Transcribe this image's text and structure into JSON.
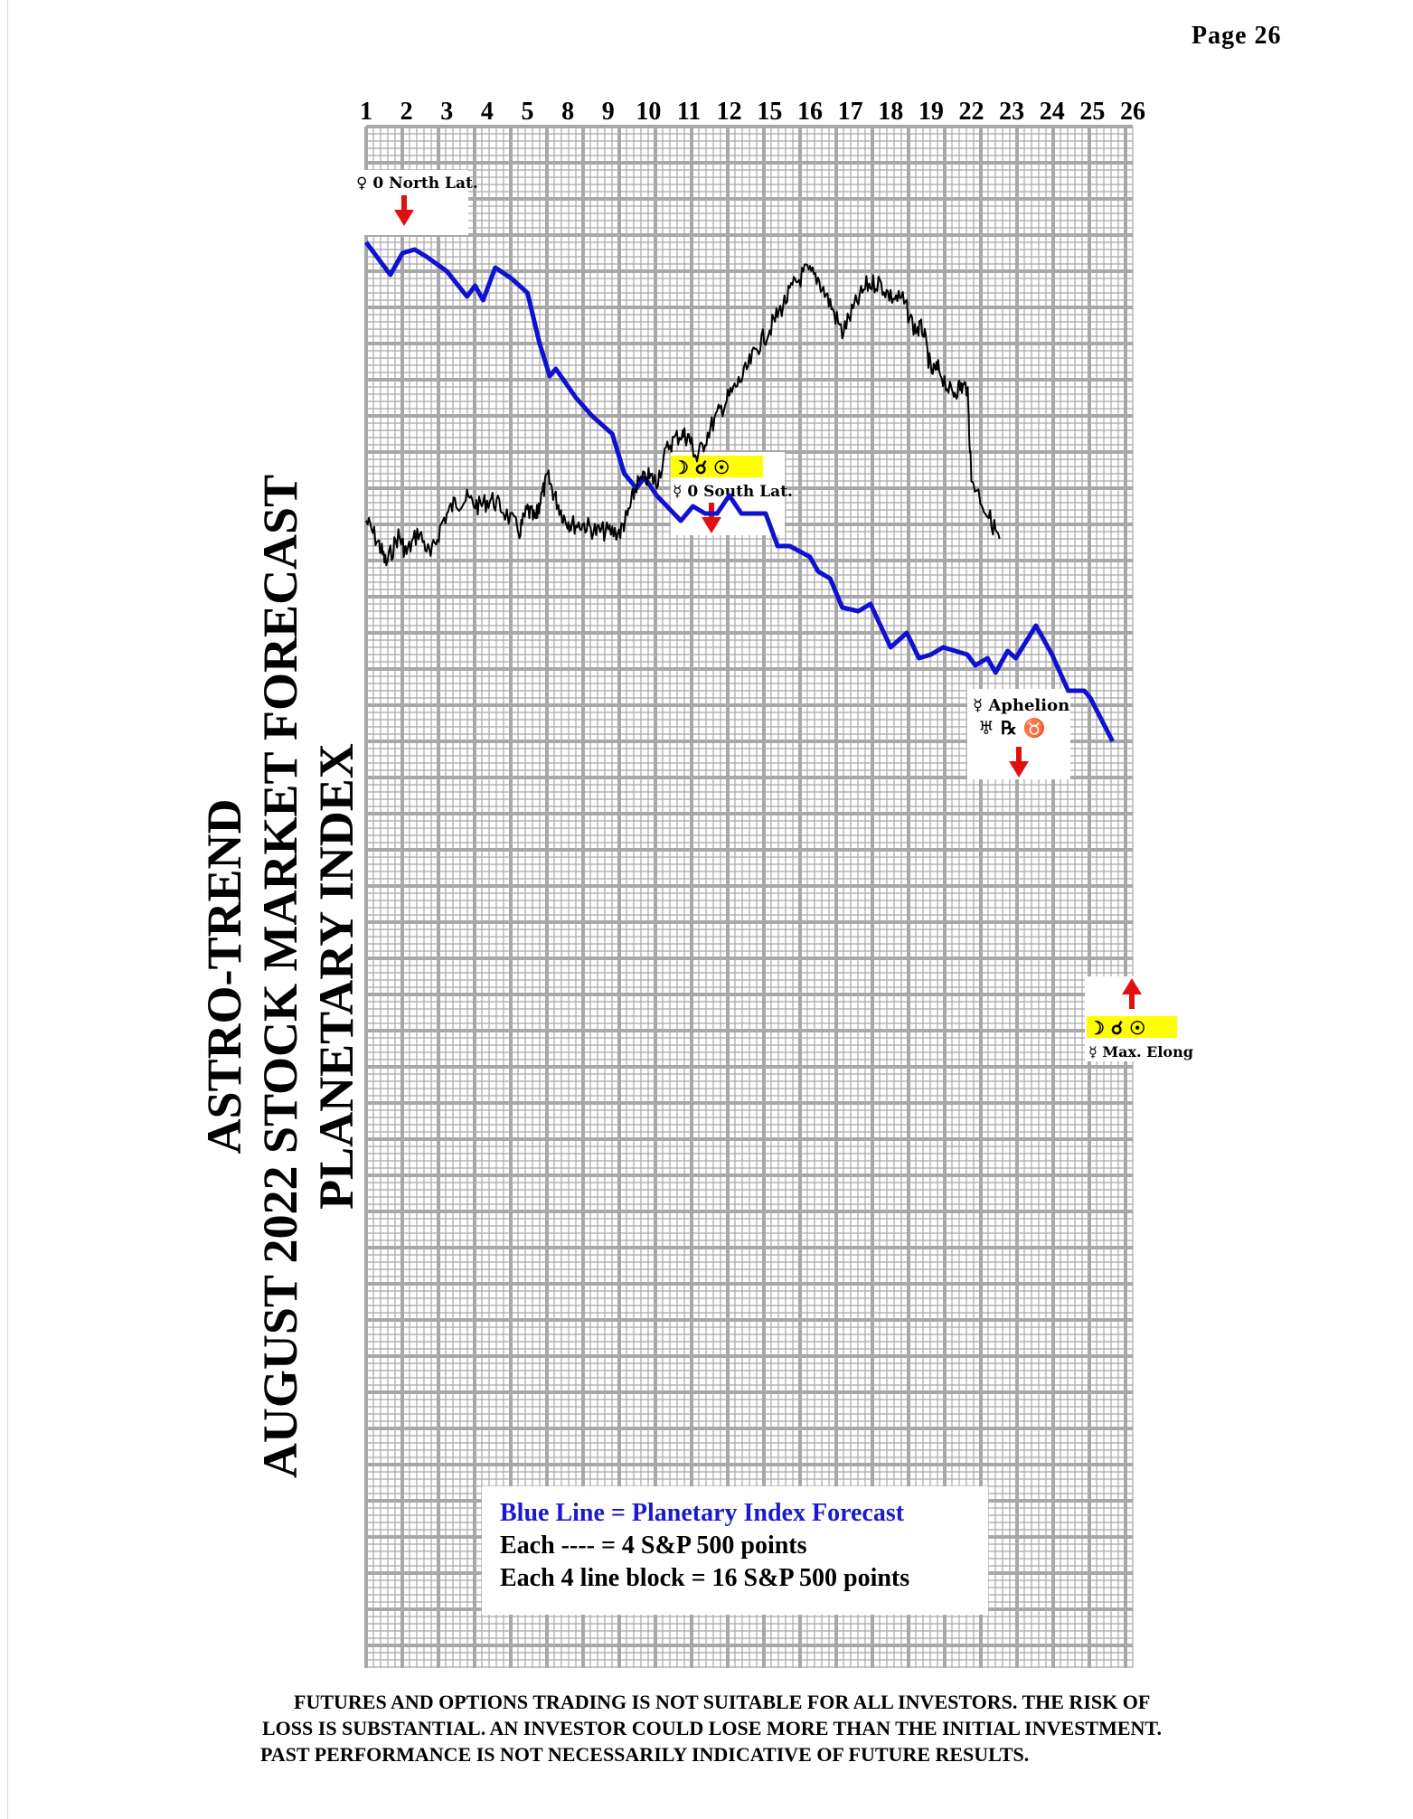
{
  "page": {
    "label": "Page  26"
  },
  "title_lines": [
    "ASTRO-TREND",
    "AUGUST 2022  STOCK MARKET FORECAST",
    "PLANETARY INDEX"
  ],
  "legend": {
    "line1": "Blue Line = Planetary Index Forecast",
    "line2": "Each ---- =   4 S&P 500 points",
    "line3": "Each 4 line block =  16  S&P 500 points"
  },
  "disclaimer": [
    "FUTURES AND OPTIONS TRADING IS NOT SUITABLE FOR ALL INVESTORS.  THE RISK OF",
    "LOSS IS SUBSTANTIAL.  AN INVESTOR COULD LOSE MORE THAN THE INITIAL INVESTMENT.",
    "PAST PERFORMANCE IS NOT NECESSARILY INDICATIVE OF FUTURE RESULTS."
  ],
  "colors": {
    "forecast": "#1010d0",
    "price": "#000000",
    "arrow": "#e01010",
    "highlight": "#ffff00",
    "grid": "#a8a8a8"
  },
  "annotations": [
    {
      "id": "north-lat",
      "symbols": "♀",
      "text": "0 North Lat.",
      "highlight": false,
      "arrow": "down"
    },
    {
      "id": "south-lat",
      "symbols": "☽ ☌ ☉",
      "text": "☿ 0 South Lat.",
      "highlight": true,
      "arrow": "down"
    },
    {
      "id": "aphelion",
      "symbols": "♅ ℞ ♉",
      "text": "☿ Aphelion",
      "highlight": false,
      "arrow": "down"
    },
    {
      "id": "max-elong",
      "symbols": "☽ ☌ ☉",
      "text": "☿ Max. Elong",
      "highlight": true,
      "arrow": "up"
    }
  ],
  "chart_data": {
    "type": "line",
    "title": "AUGUST 2022  STOCK MARKET FORECAST",
    "xlabel": "",
    "ylabel": "",
    "x_tick_labels": [
      "1",
      "2",
      "3",
      "4",
      "5",
      "8",
      "9",
      "10",
      "11",
      "12",
      "15",
      "16",
      "17",
      "18",
      "19",
      "22",
      "23",
      "24",
      "25",
      "26"
    ],
    "series": [
      {
        "name": "Planetary Index Forecast",
        "points": [
          [
            0.0,
            0
          ],
          [
            0.6,
            -9
          ],
          [
            0.9,
            -3
          ],
          [
            1.2,
            -2
          ],
          [
            1.5,
            -4
          ],
          [
            2.0,
            -8
          ],
          [
            2.5,
            -15
          ],
          [
            2.7,
            -12
          ],
          [
            2.9,
            -16
          ],
          [
            3.2,
            -7
          ],
          [
            3.6,
            -10
          ],
          [
            4.0,
            -14
          ],
          [
            4.3,
            -28
          ],
          [
            4.55,
            -37
          ],
          [
            4.7,
            -35
          ],
          [
            5.2,
            -43
          ],
          [
            5.6,
            -48
          ],
          [
            6.1,
            -53
          ],
          [
            6.4,
            -64
          ],
          [
            6.7,
            -68
          ],
          [
            6.9,
            -65
          ],
          [
            7.2,
            -70
          ],
          [
            7.8,
            -77
          ],
          [
            8.1,
            -73
          ],
          [
            8.4,
            -75
          ],
          [
            8.7,
            -75
          ],
          [
            9.0,
            -70
          ],
          [
            9.3,
            -75
          ],
          [
            9.6,
            -75
          ],
          [
            9.9,
            -75
          ],
          [
            10.2,
            -84
          ],
          [
            10.5,
            -84
          ],
          [
            11.0,
            -87
          ],
          [
            11.2,
            -91
          ],
          [
            11.5,
            -93
          ],
          [
            11.8,
            -101
          ],
          [
            12.2,
            -102
          ],
          [
            12.5,
            -100
          ],
          [
            13.0,
            -112
          ],
          [
            13.4,
            -108
          ],
          [
            13.7,
            -115
          ],
          [
            14.0,
            -114
          ],
          [
            14.3,
            -112
          ],
          [
            14.9,
            -114
          ],
          [
            15.1,
            -117
          ],
          [
            15.4,
            -115
          ],
          [
            15.6,
            -119
          ],
          [
            15.9,
            -113
          ],
          [
            16.1,
            -115
          ],
          [
            16.6,
            -106
          ],
          [
            17.0,
            -114
          ],
          [
            17.4,
            -124
          ],
          [
            17.8,
            -124
          ],
          [
            17.95,
            -126
          ],
          [
            18.5,
            -138
          ]
        ]
      },
      {
        "name": "",
        "points": [
          [
            0.0,
            -77
          ],
          [
            0.3,
            -83
          ],
          [
            0.5,
            -89
          ],
          [
            0.8,
            -81
          ],
          [
            1.0,
            -86
          ],
          [
            1.3,
            -80
          ],
          [
            1.6,
            -87
          ],
          [
            1.9,
            -77
          ],
          [
            2.2,
            -72
          ],
          [
            2.5,
            -71
          ],
          [
            2.8,
            -73
          ],
          [
            3.1,
            -71
          ],
          [
            3.4,
            -74
          ],
          [
            3.8,
            -80
          ],
          [
            4.0,
            -74
          ],
          [
            4.2,
            -77
          ],
          [
            4.3,
            -72
          ],
          [
            4.5,
            -65
          ],
          [
            4.7,
            -71
          ],
          [
            4.9,
            -76
          ],
          [
            5.1,
            -78
          ],
          [
            5.4,
            -78
          ],
          [
            5.7,
            -80
          ],
          [
            6.0,
            -80
          ],
          [
            6.3,
            -80
          ],
          [
            6.5,
            -75
          ],
          [
            6.7,
            -67
          ],
          [
            7.0,
            -65
          ],
          [
            7.2,
            -66
          ],
          [
            7.5,
            -56
          ],
          [
            7.8,
            -53
          ],
          [
            8.0,
            -54
          ],
          [
            8.2,
            -60
          ],
          [
            8.5,
            -52
          ],
          [
            8.8,
            -46
          ],
          [
            9.1,
            -41
          ],
          [
            9.4,
            -36
          ],
          [
            9.7,
            -29
          ],
          [
            10.0,
            -24
          ],
          [
            10.3,
            -18
          ],
          [
            10.6,
            -12
          ],
          [
            10.9,
            -8
          ],
          [
            11.2,
            -10
          ],
          [
            11.5,
            -17
          ],
          [
            11.8,
            -25
          ],
          [
            12.1,
            -18
          ],
          [
            12.4,
            -12
          ],
          [
            12.7,
            -11
          ],
          [
            13.0,
            -15
          ],
          [
            13.3,
            -16
          ],
          [
            13.6,
            -24
          ],
          [
            13.8,
            -24
          ],
          [
            14.0,
            -36
          ],
          [
            14.2,
            -35
          ],
          [
            14.5,
            -42
          ],
          [
            14.7,
            -40
          ],
          [
            14.9,
            -40
          ],
          [
            15.0,
            -65
          ],
          [
            15.4,
            -75
          ],
          [
            15.7,
            -82
          ]
        ]
      }
    ],
    "grid": true,
    "legend": "bottom-center"
  }
}
